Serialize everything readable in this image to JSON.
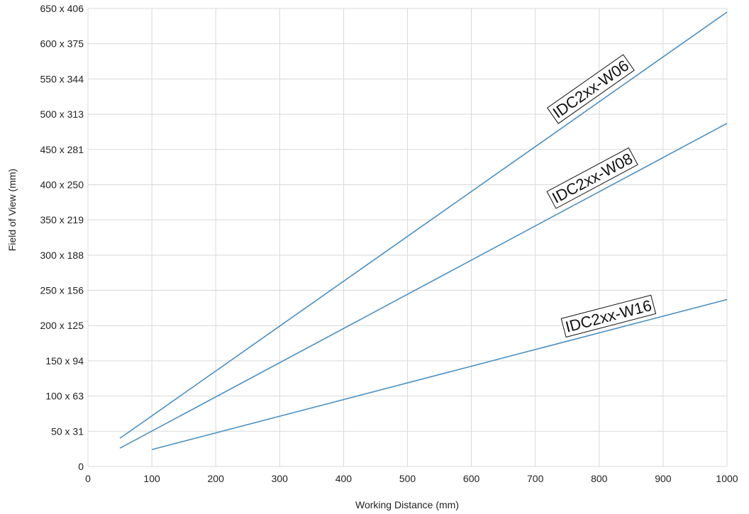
{
  "chart_data": {
    "type": "line",
    "title": "",
    "xlabel": "Working Distance (mm)",
    "ylabel": "Field of View (mm)",
    "xlim": [
      0,
      1000
    ],
    "ylim": [
      0,
      650
    ],
    "grid": true,
    "x_ticks": [
      0,
      100,
      200,
      300,
      400,
      500,
      600,
      700,
      800,
      900,
      1000
    ],
    "x_tick_labels": [
      "0",
      "100",
      "200",
      "300",
      "400",
      "500",
      "600",
      "700",
      "800",
      "900",
      "1000"
    ],
    "y_ticks": [
      0,
      50,
      100,
      150,
      200,
      250,
      300,
      350,
      400,
      450,
      500,
      550,
      600,
      650
    ],
    "y_tick_labels": [
      "0",
      "50 x 31",
      "100 x 63",
      "150 x 94",
      "200 x 125",
      "250 x 156",
      "300 x 188",
      "350 x 219",
      "400 x 250",
      "450 x 281",
      "500 x 313",
      "550 x 344",
      "600 x 375",
      "650 x 406"
    ],
    "line_color": "#4a90c4",
    "grid_color": "#d9d9d9",
    "series": [
      {
        "name": "IDC2xx-W06",
        "x": [
          50,
          1000
        ],
        "y": [
          40,
          645
        ]
      },
      {
        "name": "IDC2xx-W08",
        "x": [
          50,
          1000
        ],
        "y": [
          26,
          487
        ]
      },
      {
        "name": "IDC2xx-W16",
        "x": [
          100,
          1000
        ],
        "y": [
          24,
          237
        ]
      }
    ]
  }
}
